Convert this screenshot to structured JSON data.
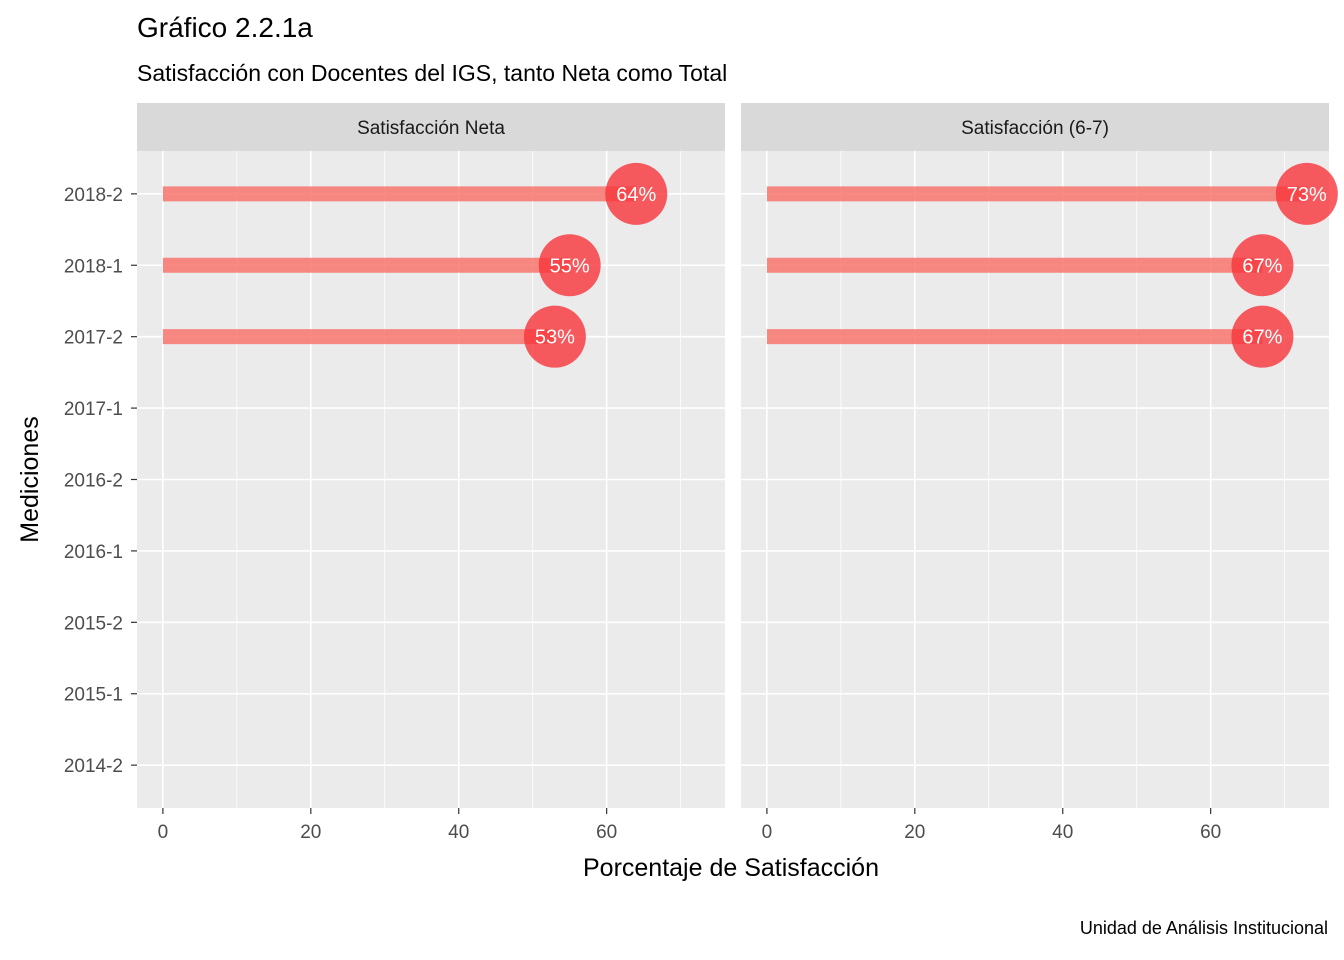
{
  "chart_data": {
    "type": "bar",
    "title": "Gráfico 2.2.1a",
    "subtitle": "Satisfacción con Docentes del IGS, tanto Neta como Total",
    "caption": "Unidad de Análisis Institucional",
    "xlabel": "Porcentaje de Satisfacción",
    "ylabel": "Mediciones",
    "categories": [
      "2014-2",
      "2015-1",
      "2015-2",
      "2016-1",
      "2016-2",
      "2017-1",
      "2017-2",
      "2018-1",
      "2018-2"
    ],
    "xlim": [
      -3.5,
      76
    ],
    "x_ticks": [
      0,
      20,
      40,
      60
    ],
    "colors": {
      "bar": "#F8766D",
      "point": "#F8343A",
      "panel": "#EBEBEB",
      "strip": "#D9D9D9",
      "grid": "#FFFFFF"
    },
    "panels": [
      {
        "name": "Satisfacción Neta",
        "points": [
          {
            "category": "2018-2",
            "value": 64,
            "label": "64%"
          },
          {
            "category": "2018-1",
            "value": 55,
            "label": "55%"
          },
          {
            "category": "2017-2",
            "value": 53,
            "label": "53%"
          }
        ]
      },
      {
        "name": "Satisfacción (6-7)",
        "points": [
          {
            "category": "2018-2",
            "value": 73,
            "label": "73%"
          },
          {
            "category": "2018-1",
            "value": 67,
            "label": "67%"
          },
          {
            "category": "2017-2",
            "value": 67,
            "label": "67%"
          }
        ]
      }
    ]
  }
}
